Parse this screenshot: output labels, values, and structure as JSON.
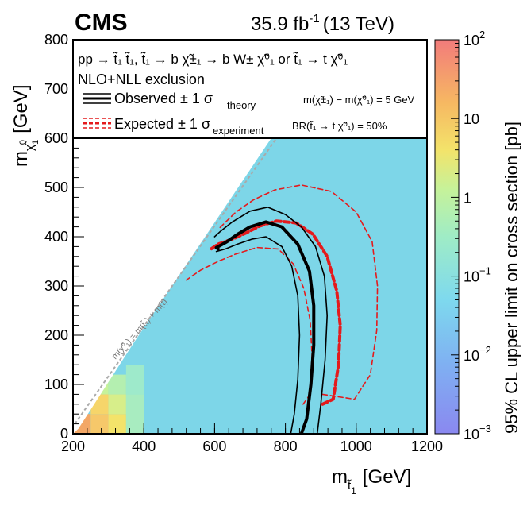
{
  "chart_data": {
    "type": "heatmap",
    "experiment": "CMS",
    "lumi_label": "35.9 fb",
    "lumi_exponent": "-1",
    "energy_label": "(13 TeV)",
    "xlabel": "m",
    "xlabel_sub": "t̃",
    "xlabel_sub2": "1",
    "xlabel_unit": "[GeV]",
    "ylabel": "m",
    "ylabel_sub": "χ̃",
    "ylabel_sub_sup": "0",
    "ylabel_sub2": "1",
    "ylabel_unit": "[GeV]",
    "xlim": [
      200,
      1200
    ],
    "ylim": [
      0,
      800
    ],
    "xticks": [
      200,
      400,
      600,
      800,
      1000,
      1200
    ],
    "yticks": [
      0,
      100,
      200,
      300,
      400,
      500,
      600,
      700,
      800
    ],
    "zlabel": "95% CL upper limit on cross section [pb]",
    "zlim": [
      0.001,
      100
    ],
    "zticks": [
      {
        "base": "10",
        "exp": "2",
        "value": 100
      },
      {
        "base": "10",
        "exp": "",
        "value": 10
      },
      {
        "base": "1",
        "exp": "",
        "value": 1
      },
      {
        "base": "10",
        "exp": "−1",
        "value": 0.1
      },
      {
        "base": "10",
        "exp": "−2",
        "value": 0.01
      },
      {
        "base": "10",
        "exp": "−3",
        "value": 0.001
      }
    ],
    "process": "pp → t̃₁ t̃₁, t̃₁ → b χ̃±₁ → b W± χ̃⁰₁ or t̃₁ → t χ̃⁰₁",
    "exclusion_label": "NLO+NLL exclusion",
    "observed_label": "Observed ± 1 σ",
    "observed_sub": "theory",
    "expected_label": "Expected ± 1 σ",
    "expected_sub": "experiment",
    "mass_split_note": "m(χ̃±₁) − m(χ̃⁰₁) = 5 GeV",
    "br_note": "BR(t̃₁ → t χ̃⁰₁) = 50%",
    "diagonal_label": "m(χ̃⁰₁) = m(t̃₁) + m(t)",
    "colors": {
      "observed": "#000000",
      "expected": "#e41a1c",
      "diagonal": "#aaaaaa",
      "fill_main": "#7dd6e8"
    },
    "observed_curve": [
      [
        845,
        0
      ],
      [
        860,
        30
      ],
      [
        872,
        100
      ],
      [
        880,
        180
      ],
      [
        880,
        260
      ],
      [
        868,
        330
      ],
      [
        835,
        385
      ],
      [
        790,
        420
      ],
      [
        745,
        430
      ],
      [
        700,
        420
      ],
      [
        665,
        405
      ],
      [
        635,
        390
      ],
      [
        615,
        382
      ],
      [
        605,
        378
      ],
      [
        610,
        375
      ]
    ],
    "observed_plus": [
      [
        890,
        0
      ],
      [
        900,
        60
      ],
      [
        912,
        150
      ],
      [
        918,
        240
      ],
      [
        910,
        320
      ],
      [
        885,
        380
      ],
      [
        845,
        420
      ],
      [
        800,
        445
      ],
      [
        750,
        460
      ],
      [
        700,
        452
      ],
      [
        650,
        430
      ],
      [
        615,
        410
      ],
      [
        600,
        400
      ]
    ],
    "observed_minus": [
      [
        815,
        0
      ],
      [
        825,
        40
      ],
      [
        835,
        110
      ],
      [
        840,
        200
      ],
      [
        835,
        280
      ],
      [
        818,
        340
      ],
      [
        790,
        380
      ],
      [
        745,
        400
      ],
      [
        705,
        395
      ],
      [
        665,
        385
      ],
      [
        630,
        375
      ],
      [
        605,
        370
      ]
    ],
    "expected_curve": [
      [
        905,
        60
      ],
      [
        935,
        70
      ],
      [
        950,
        140
      ],
      [
        955,
        220
      ],
      [
        945,
        290
      ],
      [
        918,
        360
      ],
      [
        878,
        405
      ],
      [
        830,
        428
      ],
      [
        775,
        432
      ],
      [
        728,
        422
      ],
      [
        690,
        408
      ],
      [
        650,
        395
      ],
      [
        610,
        385
      ],
      [
        590,
        375
      ]
    ],
    "expected_plus": [
      [
        905,
        80
      ],
      [
        995,
        70
      ],
      [
        1040,
        120
      ],
      [
        1058,
        210
      ],
      [
        1060,
        300
      ],
      [
        1045,
        390
      ],
      [
        1000,
        450
      ],
      [
        930,
        492
      ],
      [
        845,
        505
      ],
      [
        770,
        495
      ],
      [
        710,
        475
      ],
      [
        660,
        450
      ],
      [
        610,
        415
      ]
    ],
    "expected_minus": [
      [
        850,
        60
      ],
      [
        870,
        80
      ],
      [
        875,
        160
      ],
      [
        870,
        230
      ],
      [
        852,
        295
      ],
      [
        822,
        345
      ],
      [
        780,
        375
      ],
      [
        720,
        378
      ],
      [
        660,
        365
      ],
      [
        610,
        350
      ],
      [
        560,
        332
      ],
      [
        520,
        312
      ]
    ]
  }
}
